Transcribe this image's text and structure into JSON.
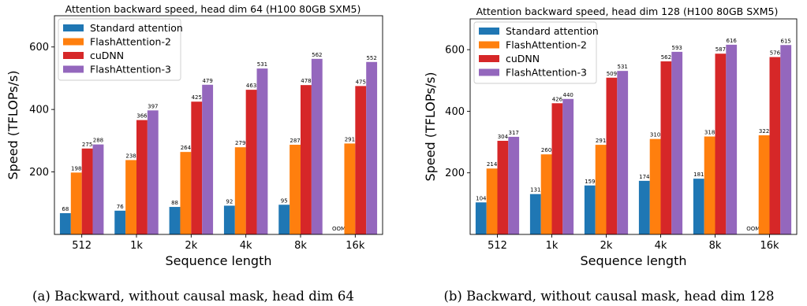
{
  "colors": {
    "Standard attention": "#1f77b4",
    "FlashAttention-2": "#ff7f0e",
    "cuDNN": "#d62728",
    "FlashAttention-3": "#9467bd"
  },
  "chart_data": [
    {
      "type": "bar",
      "title": "Attention backward speed, head dim 64 (H100 80GB SXM5)",
      "xlabel": "Sequence length",
      "ylabel": "Speed (TFLOPs/s)",
      "ylim": [
        0,
        700
      ],
      "yticks": [
        200,
        400,
        600
      ],
      "grid": false,
      "legend_position": "top-left",
      "categories": [
        "512",
        "1k",
        "2k",
        "4k",
        "8k",
        "16k"
      ],
      "series": [
        {
          "name": "Standard attention",
          "values": [
            68,
            76,
            88,
            92,
            95,
            null
          ],
          "labels": [
            "68",
            "76",
            "88",
            "92",
            "95",
            "OOM"
          ]
        },
        {
          "name": "FlashAttention-2",
          "values": [
            198,
            238,
            264,
            279,
            287,
            291
          ],
          "labels": [
            "198",
            "238",
            "264",
            "279",
            "287",
            "291"
          ]
        },
        {
          "name": "cuDNN",
          "values": [
            275,
            366,
            425,
            463,
            478,
            475
          ],
          "labels": [
            "275",
            "366",
            "425",
            "463",
            "478",
            "475"
          ]
        },
        {
          "name": "FlashAttention-3",
          "values": [
            288,
            397,
            479,
            531,
            562,
            552
          ],
          "labels": [
            "288",
            "397",
            "479",
            "531",
            "562",
            "552"
          ]
        }
      ],
      "caption": "(a) Backward, without causal mask, head dim 64"
    },
    {
      "type": "bar",
      "title": "Attention backward speed, head dim 128 (H100 80GB SXM5)",
      "xlabel": "Sequence length",
      "ylabel": "Speed (TFLOPs/s)",
      "ylim": [
        0,
        700
      ],
      "yticks": [
        200,
        400,
        600
      ],
      "grid": false,
      "legend_position": "top-left",
      "categories": [
        "512",
        "1k",
        "2k",
        "4k",
        "8k",
        "16k"
      ],
      "series": [
        {
          "name": "Standard attention",
          "values": [
            104,
            131,
            159,
            174,
            181,
            null
          ],
          "labels": [
            "104",
            "131",
            "159",
            "174",
            "181",
            "OOM"
          ]
        },
        {
          "name": "FlashAttention-2",
          "values": [
            214,
            260,
            291,
            310,
            318,
            322
          ],
          "labels": [
            "214",
            "260",
            "291",
            "310",
            "318",
            "322"
          ]
        },
        {
          "name": "cuDNN",
          "values": [
            304,
            426,
            509,
            562,
            587,
            576
          ],
          "labels": [
            "304",
            "426",
            "509",
            "562",
            "587",
            "576"
          ]
        },
        {
          "name": "FlashAttention-3",
          "values": [
            317,
            440,
            531,
            593,
            616,
            615
          ],
          "labels": [
            "317",
            "440",
            "531",
            "593",
            "616",
            "615"
          ]
        }
      ],
      "caption": "(b) Backward, without causal mask, head dim 128"
    }
  ]
}
